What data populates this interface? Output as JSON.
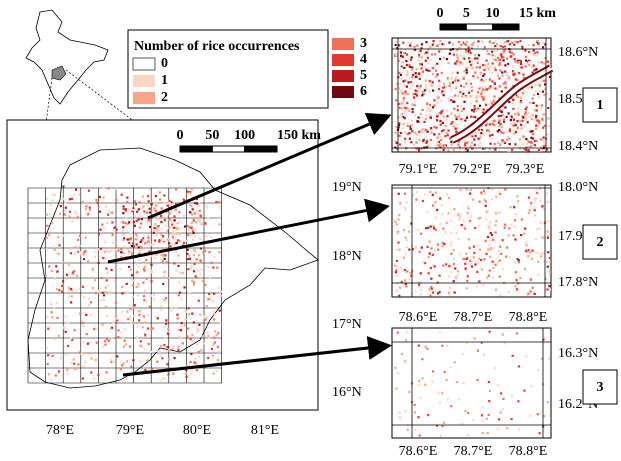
{
  "legend": {
    "title": "Number of rice occurrences",
    "items": [
      {
        "label": "0",
        "color": "#ffffff"
      },
      {
        "label": "1",
        "color": "#fcd5c5"
      },
      {
        "label": "2",
        "color": "#f7a584"
      },
      {
        "label": "3",
        "color": "#f0705a"
      },
      {
        "label": "4",
        "color": "#e23a2f"
      },
      {
        "label": "5",
        "color": "#bb1b1f"
      },
      {
        "label": "6",
        "color": "#6e0a14"
      }
    ]
  },
  "main_map": {
    "scale_bar": [
      "0",
      "50",
      "100",
      "150 km"
    ],
    "lat_labels": [
      "19°N",
      "18°N",
      "17°N",
      "16°N"
    ],
    "lon_labels": [
      "78°E",
      "79°E",
      "80°E",
      "81°E"
    ]
  },
  "insets": [
    {
      "label": "1",
      "scale_bar": [
        "0",
        "5",
        "10",
        "15 km"
      ],
      "lat_labels": [
        "18.6°N",
        "18.5°N",
        "18.4°N"
      ],
      "lon_labels": [
        "79.1°E",
        "79.2°E",
        "79.3°E"
      ]
    },
    {
      "label": "2",
      "lat_labels": [
        "18.0°N",
        "17.9°N",
        "17.8°N"
      ],
      "lon_labels": [
        "78.6°E",
        "78.7°E",
        "78.8°E"
      ]
    },
    {
      "label": "3",
      "lat_labels": [
        "16.3°N",
        "16.2°N"
      ],
      "lon_labels": [
        "78.6°E",
        "78.7°E",
        "78.8°E"
      ]
    }
  ]
}
